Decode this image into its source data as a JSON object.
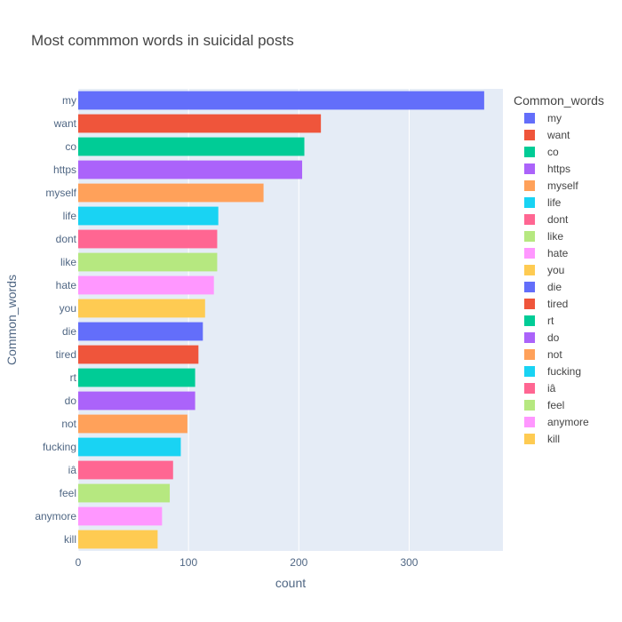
{
  "chart_data": {
    "type": "bar",
    "orientation": "horizontal",
    "title": "Most commmon words in suicidal posts",
    "xlabel": "count",
    "ylabel": "Common_words",
    "legend_title": "Common_words",
    "legend_position": "right",
    "grid": true,
    "xlim": [
      0,
      385
    ],
    "xticks": [
      0,
      100,
      200,
      300
    ],
    "categories": [
      "my",
      "want",
      "co",
      "https",
      "myself",
      "life",
      "dont",
      "like",
      "hate",
      "you",
      "die",
      "tired",
      "rt",
      "do",
      "not",
      "fucking",
      "iâ",
      "feel",
      "anymore",
      "kill"
    ],
    "values": [
      368,
      220,
      205,
      203,
      168,
      127,
      126,
      126,
      123,
      115,
      113,
      109,
      106,
      106,
      99,
      93,
      86,
      83,
      76,
      72
    ],
    "colors": [
      "#636efa",
      "#EF553B",
      "#00cc96",
      "#ab63fa",
      "#FFA15A",
      "#19d3f3",
      "#FF6692",
      "#B6E880",
      "#FF97FF",
      "#FECB52",
      "#636efa",
      "#EF553B",
      "#00cc96",
      "#ab63fa",
      "#FFA15A",
      "#19d3f3",
      "#FF6692",
      "#B6E880",
      "#FF97FF",
      "#FECB52"
    ]
  },
  "colors": {
    "plot_bg": "#E5ECF6",
    "grid": "#ffffff",
    "text": "#444444",
    "tick_text": "#506784"
  }
}
